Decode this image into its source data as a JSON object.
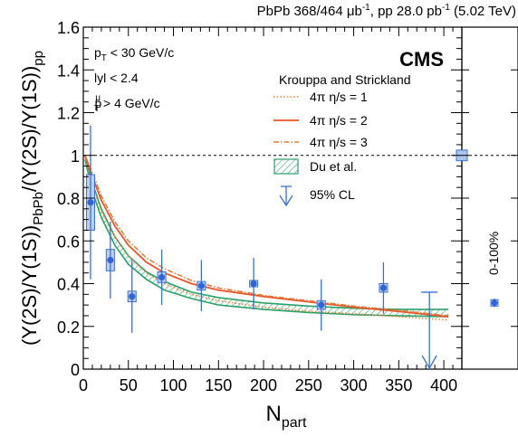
{
  "chart_data": {
    "type": "scatter",
    "header": {
      "left": "PbPb 368/464 μb",
      "left_sup": "-1",
      "right": ", pp 28.0 pb",
      "right_sup": "-1",
      "tail": " (5.02 TeV)"
    },
    "xlabel": {
      "main": "N",
      "sub": "part"
    },
    "ylabel": {
      "p1": "(Υ(2S)/Υ(1S))",
      "s1": "PbPb",
      "p2": "/(Υ(2S)/Υ(1S))",
      "s2": "pp"
    },
    "xlim": [
      0,
      420
    ],
    "ylim": [
      0,
      1.6
    ],
    "x_ticks": [
      0,
      50,
      100,
      150,
      200,
      250,
      300,
      350,
      400
    ],
    "x_tick_labels": [
      "0",
      "50",
      "100",
      "150",
      "200",
      "250",
      "300",
      "350",
      "400"
    ],
    "y_ticks": [
      0,
      0.2,
      0.4,
      0.6,
      0.8,
      1.0,
      1.2,
      1.4,
      1.6
    ],
    "y_tick_labels": [
      "0",
      "0.2",
      "0.4",
      "0.6",
      "0.8",
      "1",
      "1.2",
      "1.4",
      "1.6"
    ],
    "reference_line": 1.0,
    "experiment": "CMS",
    "cuts": [
      {
        "base": "p",
        "sub": "T",
        "sup": "",
        "rest": " < 30 GeV/c"
      },
      {
        "base": "lyl < 2.4",
        "sub": "",
        "sup": "",
        "rest": ""
      },
      {
        "base": "p",
        "sub": "T",
        "sup": "μ",
        "rest": " > 4 GeV/c"
      }
    ],
    "model_title": "Krouppa and Strickland",
    "legend": [
      {
        "label": "4π η/s = 1",
        "color": "#e8813a",
        "style": "dotted"
      },
      {
        "label": "4π η/s = 2",
        "color": "#e8562a",
        "style": "solid"
      },
      {
        "label": "4π η/s = 3",
        "color": "#e07a3a",
        "style": "dashdot"
      },
      {
        "label": "Du et al.",
        "color": "#2aa06a",
        "style": "hatched-band"
      },
      {
        "label": "95% CL",
        "color": "#3a70d0",
        "style": "upper-limit-arrow"
      }
    ],
    "legend_position": "top-right",
    "series": [
      {
        "name": "Data",
        "color": "#2f65d6",
        "x": [
          8,
          30,
          54,
          87,
          131,
          189,
          264,
          333
        ],
        "y": [
          0.78,
          0.51,
          0.34,
          0.43,
          0.39,
          0.4,
          0.3,
          0.38
        ],
        "stat_lo": [
          0.36,
          0.18,
          0.17,
          0.13,
          0.12,
          0.12,
          0.12,
          0.12
        ],
        "stat_hi": [
          0.36,
          0.18,
          0.17,
          0.13,
          0.12,
          0.12,
          0.12,
          0.12
        ],
        "syst": [
          0.13,
          0.05,
          0.025,
          0.025,
          0.02,
          0.015,
          0.02,
          0.02
        ]
      }
    ],
    "upper_limit": {
      "x": 384,
      "y": 0.36
    },
    "global_uncertainty_box": {
      "y": 1.0,
      "half": 0.025
    },
    "krouppa_curves": [
      {
        "name": "4π η/s = 1",
        "style": "dotted",
        "x": [
          2,
          10,
          20,
          35,
          50,
          70,
          90,
          120,
          150,
          200,
          250,
          300,
          350,
          405
        ],
        "y": [
          0.99,
          0.86,
          0.74,
          0.62,
          0.53,
          0.45,
          0.4,
          0.35,
          0.32,
          0.29,
          0.27,
          0.26,
          0.245,
          0.23
        ]
      },
      {
        "name": "4π η/s = 2",
        "style": "solid",
        "x": [
          2,
          10,
          20,
          35,
          50,
          70,
          90,
          120,
          150,
          200,
          250,
          300,
          350,
          405
        ],
        "y": [
          1.0,
          0.9,
          0.79,
          0.67,
          0.58,
          0.5,
          0.45,
          0.4,
          0.37,
          0.34,
          0.315,
          0.29,
          0.27,
          0.245
        ]
      },
      {
        "name": "4π η/s = 3",
        "style": "dashdot",
        "x": [
          2,
          10,
          20,
          35,
          50,
          70,
          90,
          120,
          150,
          200,
          250,
          300,
          350,
          405
        ],
        "y": [
          1.0,
          0.92,
          0.81,
          0.69,
          0.6,
          0.52,
          0.47,
          0.415,
          0.38,
          0.345,
          0.32,
          0.295,
          0.275,
          0.25
        ]
      }
    ],
    "du_band": {
      "x": [
        2,
        10,
        20,
        35,
        50,
        70,
        90,
        120,
        150,
        200,
        250,
        300,
        350,
        405
      ],
      "lo": [
        0.98,
        0.83,
        0.71,
        0.58,
        0.49,
        0.42,
        0.37,
        0.33,
        0.3,
        0.28,
        0.265,
        0.255,
        0.25,
        0.245
      ],
      "hi": [
        1.0,
        0.87,
        0.75,
        0.62,
        0.53,
        0.455,
        0.41,
        0.36,
        0.335,
        0.31,
        0.295,
        0.285,
        0.28,
        0.28
      ]
    },
    "integrated": {
      "label": "0-100%",
      "y": 0.31,
      "stat": 0.02,
      "syst": 0.015
    }
  }
}
